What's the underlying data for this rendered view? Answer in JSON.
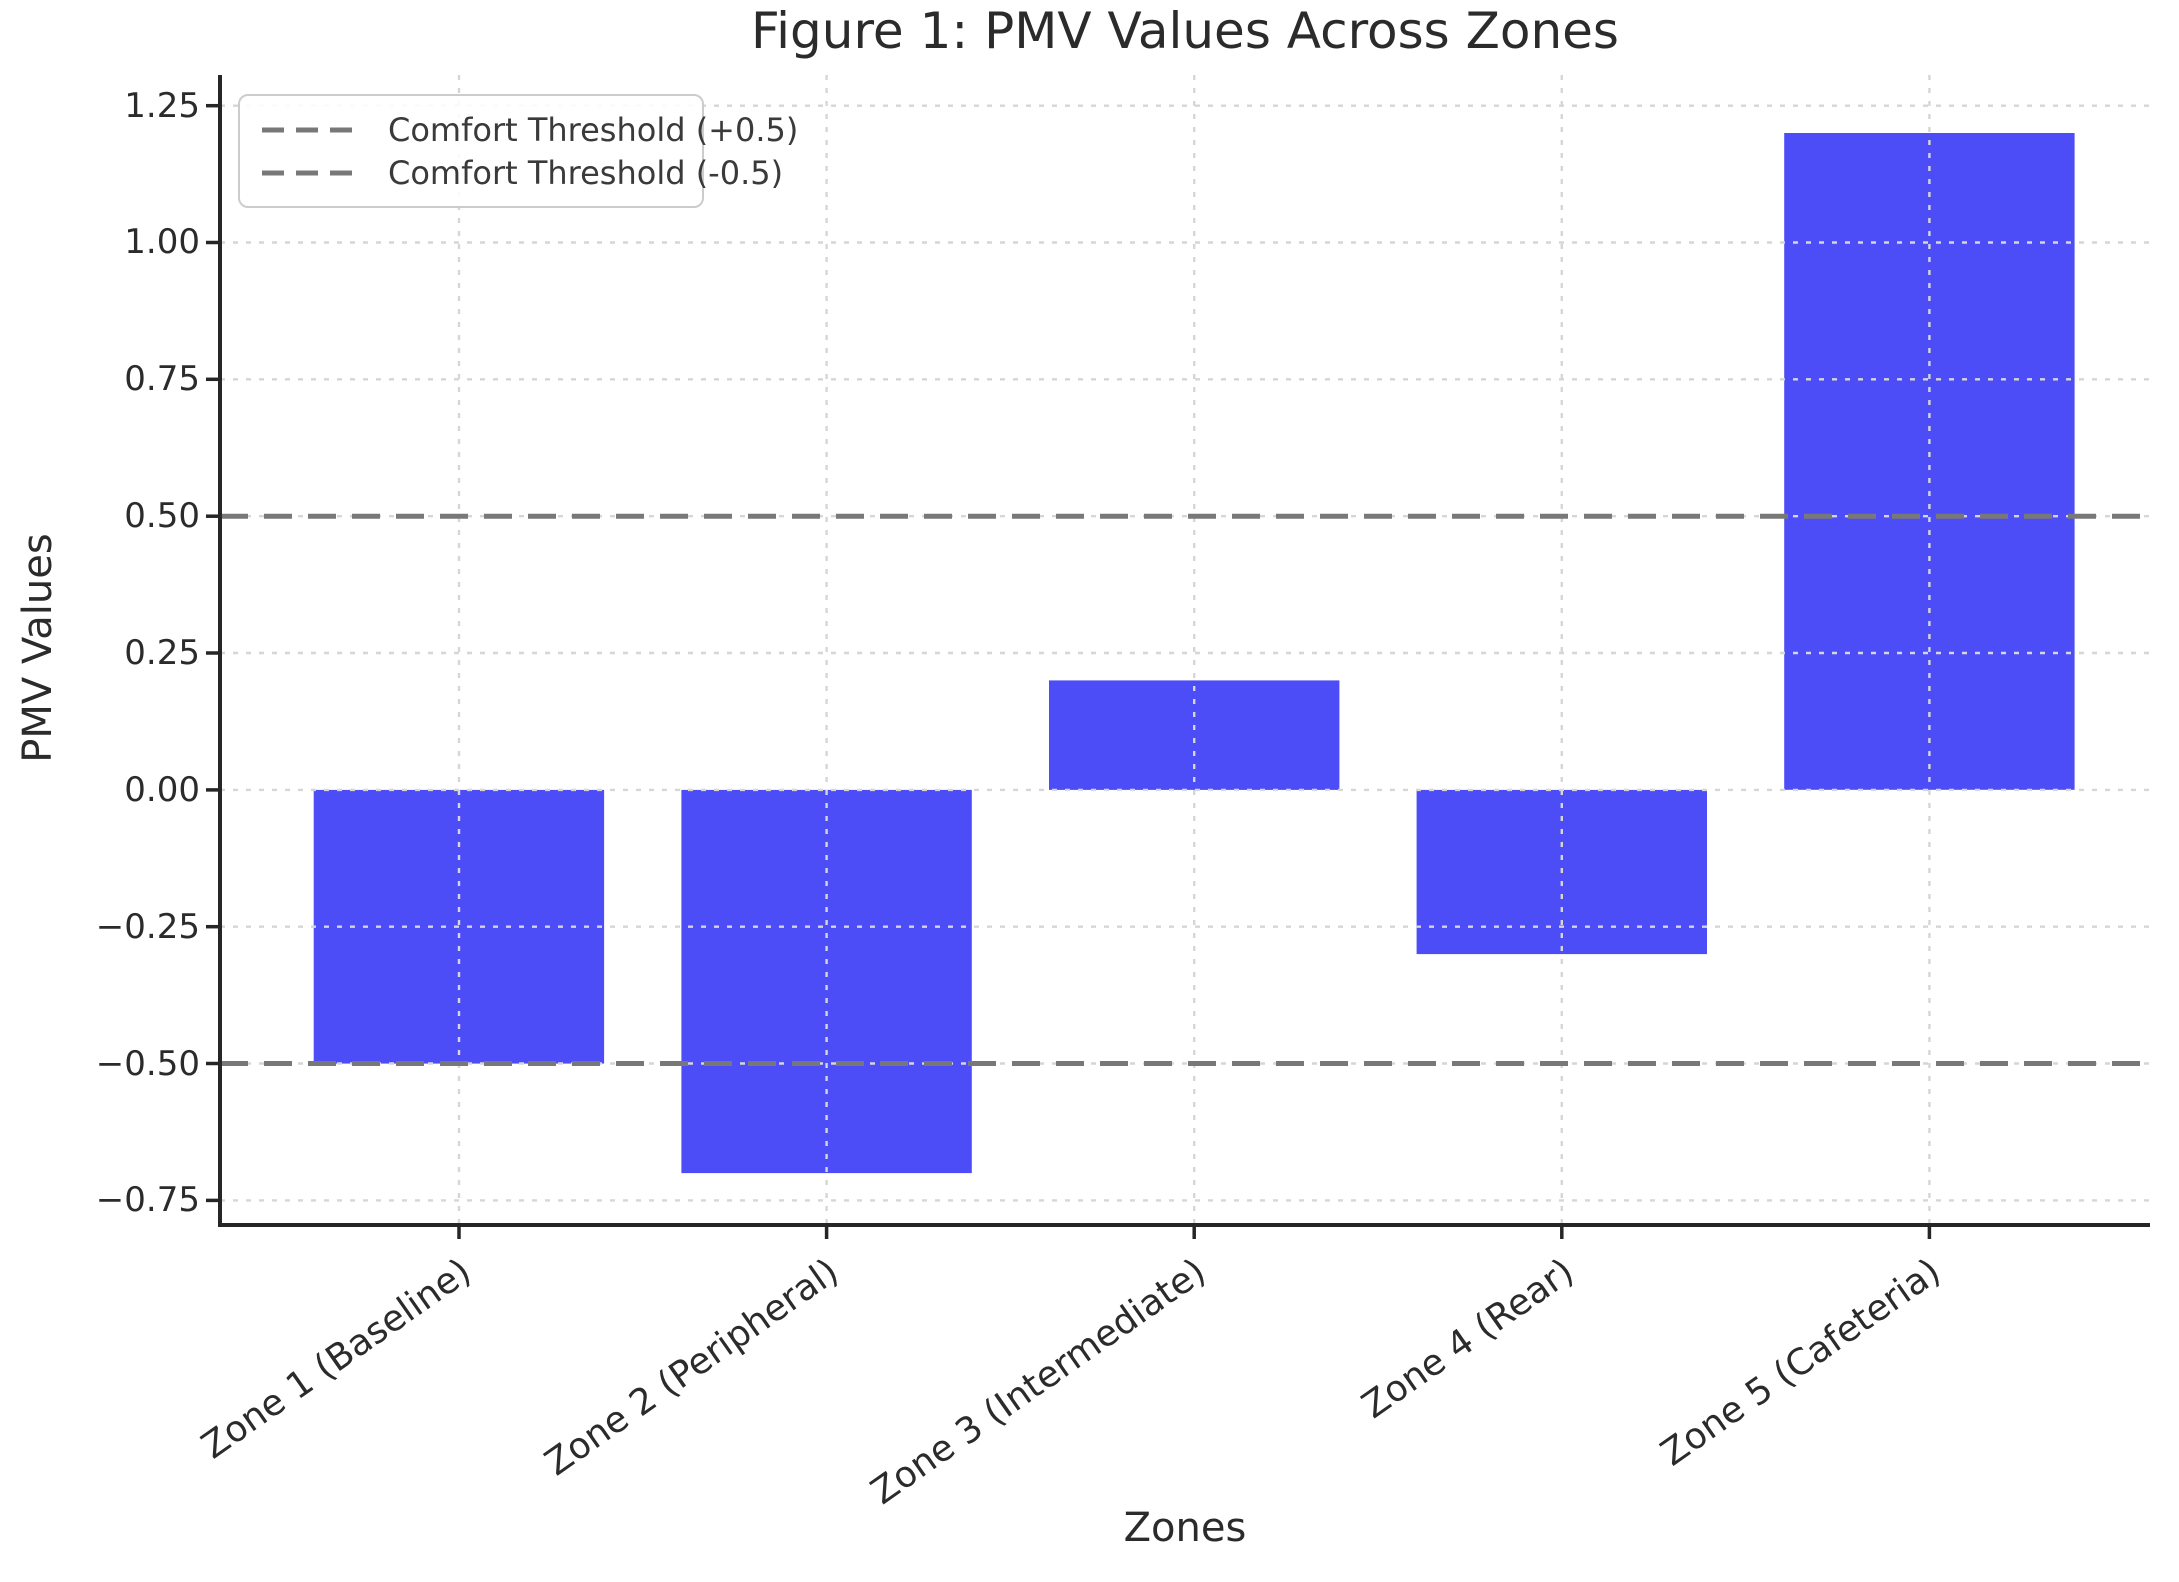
{
  "chart_data": {
    "type": "bar",
    "title": "Figure 1: PMV Values Across Zones",
    "xlabel": "Zones",
    "ylabel": "PMV Values",
    "categories": [
      "Zone 1 (Baseline)",
      "Zone 2 (Peripheral)",
      "Zone 3 (Intermediate)",
      "Zone 4 (Rear)",
      "Zone 5 (Cafeteria)"
    ],
    "values": [
      -0.5,
      -0.7,
      0.2,
      -0.3,
      1.2
    ],
    "bar_color": "#4d4df7",
    "ytick_values": [
      1.25,
      1.0,
      0.75,
      0.5,
      0.25,
      0.0,
      -0.25,
      -0.5,
      -0.75
    ],
    "ytick_labels": [
      "1.25",
      "1.00",
      "0.75",
      "0.50",
      "0.25",
      "0.00",
      "−0.25",
      "−0.50",
      "−0.75"
    ],
    "ylim": [
      -0.795,
      1.306
    ],
    "xlim": [
      -0.65,
      4.6
    ],
    "bar_width_units": 0.79,
    "grid": true,
    "legend_position": "upper-left",
    "legend": [
      {
        "label": "Comfort Threshold (+0.5)",
        "value": 0.5
      },
      {
        "label": "Comfort Threshold (-0.5)",
        "value": -0.5
      }
    ],
    "threshold_lines": [
      0.5,
      -0.5
    ],
    "colors": {
      "threshold_line": "#787878",
      "grid_line": "#d6d6d6",
      "spine": "#262626",
      "text": "#2b2b2b"
    }
  }
}
